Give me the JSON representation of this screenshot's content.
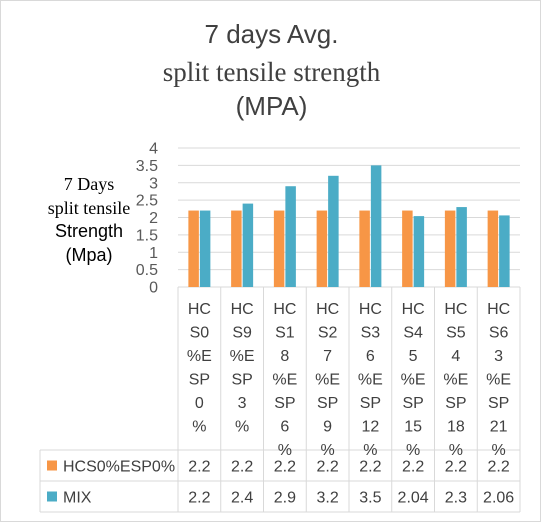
{
  "chart_data": {
    "type": "bar",
    "title": [
      "7 days Avg.",
      "split tensile strength",
      "(MPA)"
    ],
    "ylabel": [
      "7 Days",
      "split tensile",
      "Strength",
      "(Mpa)"
    ],
    "xlabel": "",
    "ylim": [
      0,
      4
    ],
    "yticks": [
      "0",
      "0.5",
      "1",
      "1.5",
      "2",
      "2.5",
      "3",
      "3.5",
      "4"
    ],
    "grid": true,
    "legend": "data-table",
    "categories": [
      [
        "HC",
        "S0",
        "%E",
        "SP",
        "0",
        "%"
      ],
      [
        "HC",
        "S9",
        "%E",
        "SP",
        "3",
        "%"
      ],
      [
        "HC",
        "S1",
        "8",
        "%E",
        "SP",
        "6",
        "%"
      ],
      [
        "HC",
        "S2",
        "7",
        "%E",
        "SP",
        "9",
        "%"
      ],
      [
        "HC",
        "S3",
        "6",
        "%E",
        "SP",
        "12",
        "%"
      ],
      [
        "HC",
        "S4",
        "5",
        "%E",
        "SP",
        "15",
        "%"
      ],
      [
        "HC",
        "S5",
        "4",
        "%E",
        "SP",
        "18",
        "%"
      ],
      [
        "HC",
        "S6",
        "3",
        "%E",
        "SP",
        "21",
        "%"
      ]
    ],
    "series": [
      {
        "name": "HCS0%ESP0%",
        "color": "#F79646",
        "values": [
          2.2,
          2.2,
          2.2,
          2.2,
          2.2,
          2.2,
          2.2,
          2.2
        ],
        "labels": [
          "2.2",
          "2.2",
          "2.2",
          "2.2",
          "2.2",
          "2.2",
          "2.2",
          "2.2"
        ]
      },
      {
        "name": "MIX",
        "color": "#4BACC6",
        "values": [
          2.2,
          2.4,
          2.9,
          3.2,
          3.5,
          2.04,
          2.3,
          2.06
        ],
        "labels": [
          "2.2",
          "2.4",
          "2.9",
          "3.2",
          "3.5",
          "2.04",
          "2.3",
          "2.06"
        ]
      }
    ]
  }
}
